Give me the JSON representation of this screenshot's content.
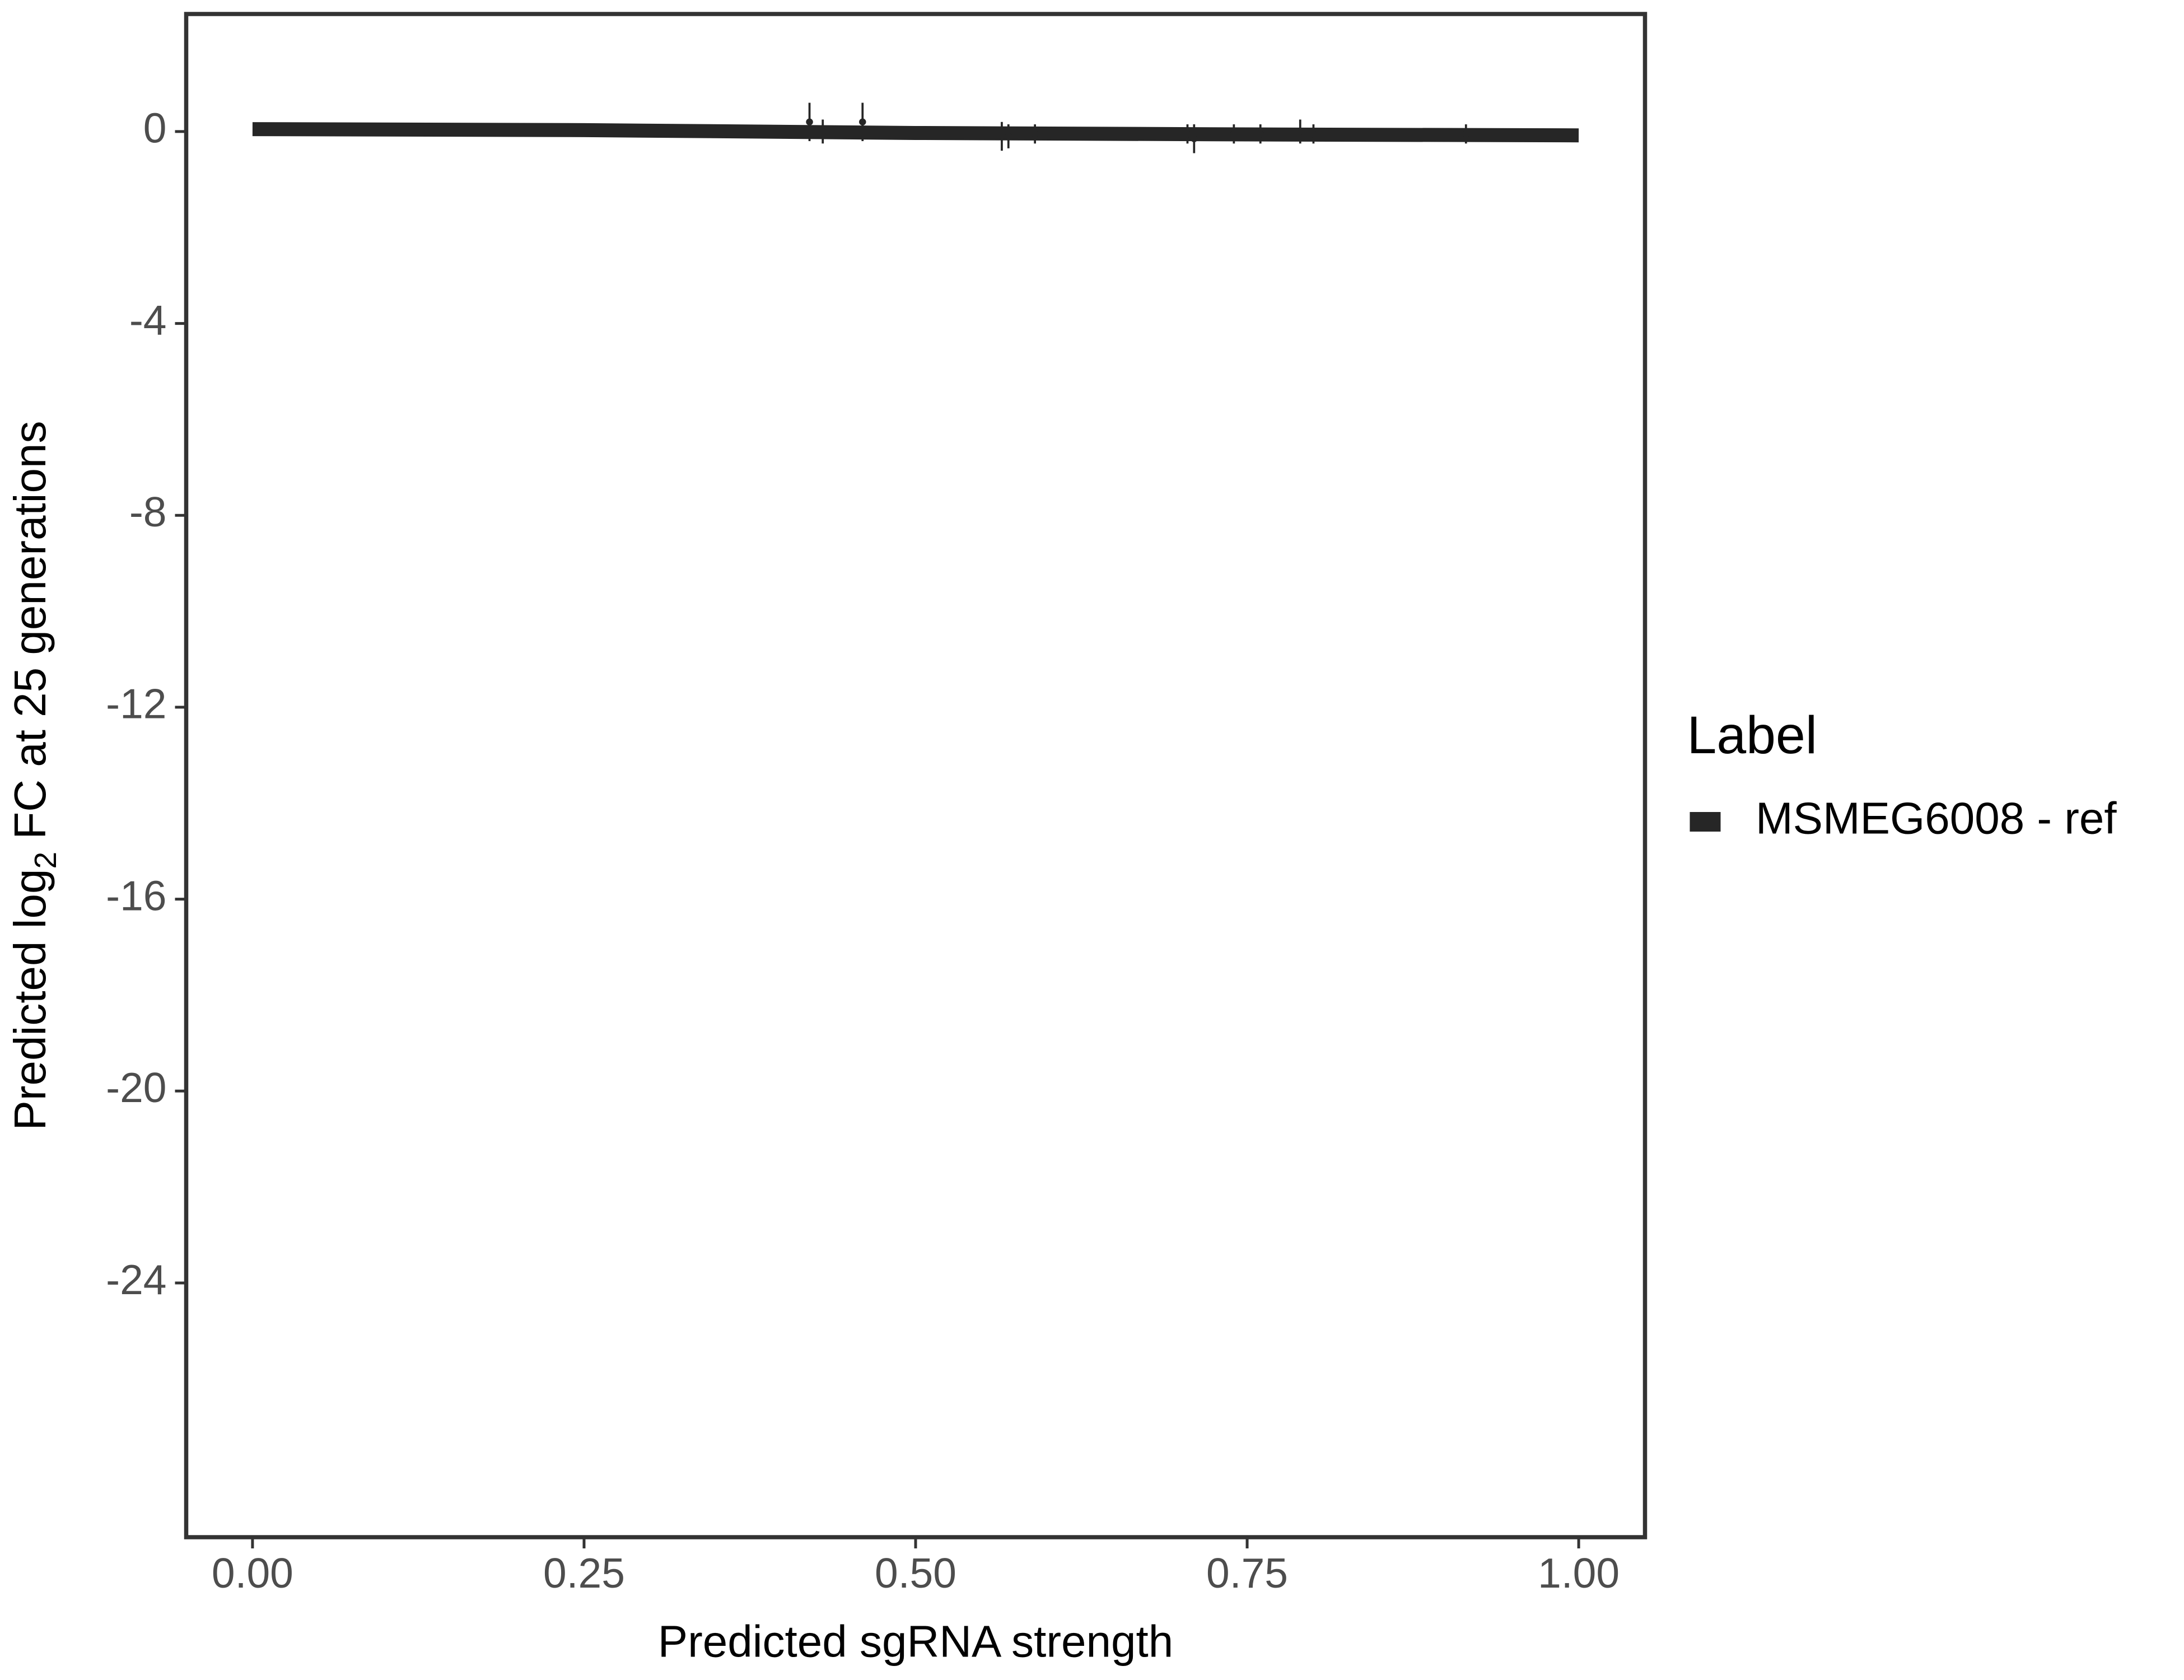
{
  "chart_data": {
    "type": "line",
    "x_label": "Predicted sgRNA strength",
    "y_label": [
      "Predicted  log",
      "2",
      " FC at 25 generations"
    ],
    "legend_title": "Label",
    "xlim": [
      -0.05,
      1.05
    ],
    "ylim": [
      -29.3,
      2.45
    ],
    "xticks": [
      {
        "value": 0,
        "label": "0.00"
      },
      {
        "value": 0.25,
        "label": "0.25"
      },
      {
        "value": 0.5,
        "label": "0.50"
      },
      {
        "value": 0.75,
        "label": "0.75"
      },
      {
        "value": 1,
        "label": "1.00"
      }
    ],
    "yticks": [
      0,
      -4,
      -8,
      -12,
      -16,
      -20,
      -24
    ],
    "series": [
      {
        "name": "MSMEG6008 - ref",
        "color": "#262626",
        "x": [
          0,
          0.25,
          0.5,
          0.75,
          1
        ],
        "values": [
          0.05,
          0.03,
          -0.03,
          -0.06,
          -0.08
        ],
        "points": {
          "x": [
            0.42,
            0.43,
            0.46,
            0.565,
            0.57,
            0.59,
            0.705,
            0.71,
            0.74,
            0.76,
            0.79,
            0.8,
            0.915
          ],
          "values": [
            0.2,
            0,
            0.2,
            -0.1,
            -0.1,
            -0.05,
            -0.05,
            -0.15,
            -0.05,
            -0.05,
            0,
            -0.05,
            -0.05
          ],
          "errors": [
            0.4,
            0.25,
            0.4,
            0.3,
            0.25,
            0.2,
            0.2,
            0.3,
            0.2,
            0.2,
            0.25,
            0.2,
            0.2
          ]
        }
      }
    ]
  }
}
